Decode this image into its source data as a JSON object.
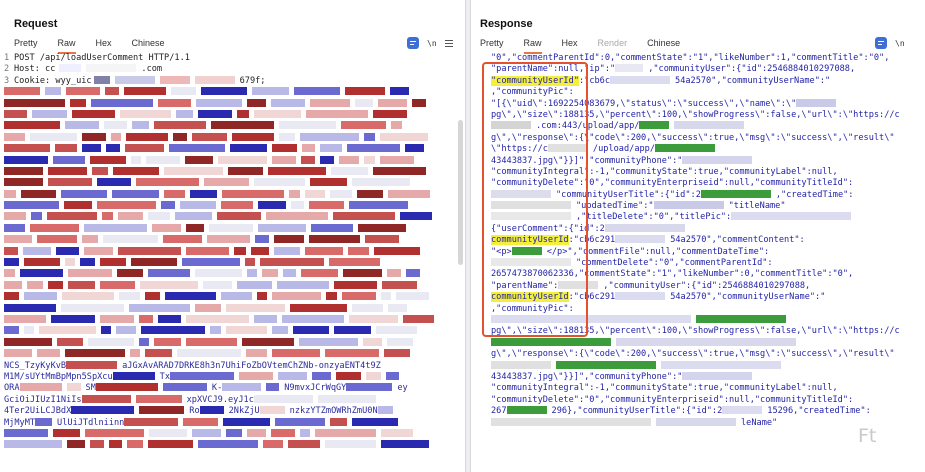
{
  "request": {
    "title": "Request",
    "tabs": [
      "Pretty",
      "Raw",
      "Hex",
      "Chinese"
    ],
    "active_tab": "Raw",
    "toolbar_text": "\\n",
    "lines": [
      {
        "num": "1",
        "text": "POST /api/loadUserComment HTTP/1.1"
      },
      {
        "num": "2",
        "text": "Host: cc"
      },
      {
        "num": "2b",
        "text": ".com"
      },
      {
        "num": "3",
        "text": "Cookie: wyy_uic"
      },
      {
        "num": "3b",
        "text": "679f;"
      }
    ],
    "visible_fragments": [
      "NCS_TzyKyKvB",
      "aJGxAvARAD7DRKE8h3n7UhiFoZbOVtemChZNb-onzyaENT4t9Z",
      "M1M/sUYtMmBpMpn5SpXcu",
      "Tx",
      "ORA",
      "SM",
      "K-",
      "N9mvxJCrWqGY",
      "ey",
      "GciOiJIUzI1NiIs",
      "xpXVCJ9.eyJ1c",
      "4Ter2UiLCJBdX",
      "Ro",
      "2NkZjU",
      "nzkzYTZmOWRhZmU0N",
      "MjMyMT",
      "UlUiJTdlniinn"
    ]
  },
  "response": {
    "title": "Response",
    "tabs": [
      "Pretty",
      "Raw",
      "Hex",
      "Render",
      "Chinese"
    ],
    "active_tab": "Raw",
    "disabled_tab": "Render",
    "toolbar_text": "\\n",
    "lines": [
      "\"0\",\"commentParentId\":0,\"commentState\":\"1\",\"likeNumber\":1,\"commentTitle\":\"0\",",
      "\"parentName\":null,\"ip\":\"",
      ",\"communityUser\":{\"id\":2546884010297088,",
      "\"communityUserId\"",
      ":\"cb6c",
      "54a2570\",\"communityUserName\":\"",
      ",\"communityPic\":",
      "\"[{\\\"uid\\\":1692254083679,\\\"status\\\":\\\"success\\\",\\\"name\\\":\\\"",
      "pg\\\",\\\"size\\\":188135,\\\"percent\\\":100,\\\"showProgress\\\":false,\\\"url\\\":\\\"https://c",
      ".com:443/upload/app/",
      "g\\\",\\\"response\\\":{\\\"code\\\":200,\\\"success\\\":true,\\\"msg\\\":\\\"success\\\",\\\"result\\\"",
      "\\\"https://c",
      "/upload/app/",
      "43443837.jpg\\\"}}]\",\"communityPhone\":\"",
      "\"communityIntegral\":-1,\"communityState\":true,\"communityLabel\":null,",
      "\"communityDelete\":\"0\",\"communityEnterpriseid\":null,\"communityTitleId\":",
      "\"communityUserTitle\":{\"id\":2",
      ",\"createdTime\":",
      "\"updatedTime\":\"",
      "\"titleName\"",
      ",\"titleDelete\":\"0\",\"titlePic\":",
      "{\"userComment\":{\"id\":2",
      ":\"cb6c291",
      "54a2570\",\"commentContent\":",
      "\"<p>",
      "</p>\",\"commentFile\":null,\"commentDateTime\":",
      "\"commentDelete\":\"0\",\"commentParentId\":",
      "2657473870062336,",
      "\"commentState\":\"1\",\"likeNumber\":0,\"commentTitle\":\"0\",",
      "\"parentName\":",
      ",\"communityUser\":{\"id\":2546884010297088,",
      ":\"cb6c291",
      "54a2570\",\"communityUserName\":\"",
      ",\"communityPic\":",
      "pg\\\",\\\"size\\\":188135,\\\"percent\\\":100,\\\"showProgress\\\":false,\\\"url\\\":\\\"https://c",
      "g\\\",\\\"response\\\":{\\\"code\\\":200,\\\"success\\\":true,\\\"msg\\\":\\\"success\\\",\\\"result\\\"",
      "43443837.jpg\\\"}}]\",\"communityPhone\":\"",
      "\"communityIntegral\":-1,\"communityState\":true,\"communityLabel\":null,",
      "\"communityDelete\":\"0\",\"communityEnterpriseid\":null,\"communityTitleId\":",
      "267",
      "296},\"communityUserTitle\":{\"id\":2",
      "15296,\"createdTime\":",
      "leName\""
    ],
    "highlight_term": "communityUserId"
  },
  "watermark": "Ft"
}
